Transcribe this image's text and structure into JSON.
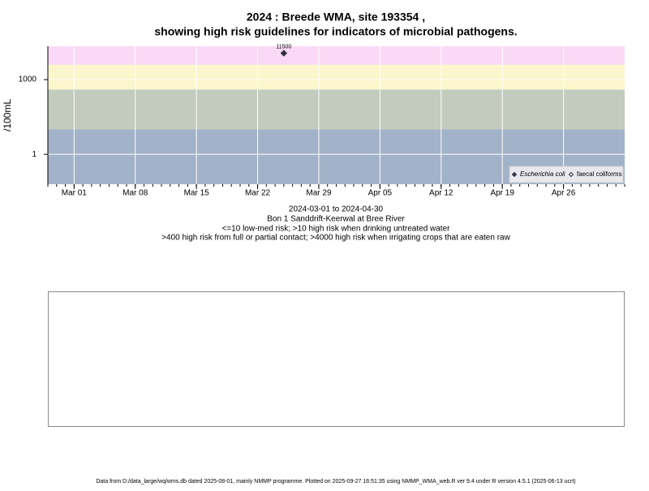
{
  "chart_data": {
    "type": "scatter",
    "title": "2024 : Breede WMA, site 193354 ,",
    "subtitle": "showing high risk guidelines for indicators of microbial pathogens.",
    "y_label": "/100mL",
    "notes": [
      "2024-03-01 to 2024-04-30",
      "Bon 1 Sanddrift-Keerwal at Bree River",
      "<=10 low-med risk; >10 high risk when drinking untreated water",
      ">400 high risk from full or partial contact; >4000 high risk when irrigating crops that are eaten raw"
    ],
    "footer": "Data from D:/data_large/wq/wms.db dated 2025-08-01, mainly NMMP programme. Plotted on 2025-09-27 16:51:35 using NMMP_WMA_web.R ver 9.4 under R version 4.5.1 (2025-06-13 ucrt)",
    "x": [
      "2024-03-25"
    ],
    "series": [
      {
        "name": "Escherichia coli",
        "color": "#333344",
        "marker": "filled-diamond",
        "values": [
          11500
        ],
        "value_labels": [
          "11500"
        ]
      },
      {
        "name": "faecal coliforms",
        "color": "#333344",
        "marker": "open-diamond",
        "values": [
          null
        ]
      }
    ],
    "bands": [
      {
        "to": 10,
        "color": "#a2b2c8"
      },
      {
        "to": 400,
        "color": "#c2cbbd"
      },
      {
        "to": 4000,
        "color": "#fbf6cc"
      },
      {
        "color": "#fad9f6"
      }
    ],
    "xlim": [
      "2024-02-27",
      "2024-05-03"
    ],
    "xticks": [
      {
        "value": "2024-03-01",
        "label": "Mar 01"
      },
      {
        "value": "2024-03-08",
        "label": "Mar 08"
      },
      {
        "value": "2024-03-15",
        "label": "Mar 15"
      },
      {
        "value": "2024-03-22",
        "label": "Mar 22"
      },
      {
        "value": "2024-03-29",
        "label": "Mar 29"
      },
      {
        "value": "2024-04-05",
        "label": "Apr 05"
      },
      {
        "value": "2024-04-12",
        "label": "Apr 12"
      },
      {
        "value": "2024-04-19",
        "label": "Apr 19"
      },
      {
        "value": "2024-04-26",
        "label": "Apr 26"
      }
    ],
    "ylim": [
      0.063,
      21800
    ],
    "yticks": [
      1,
      1000
    ],
    "log_y": true,
    "grid": true,
    "legend": "bottom-right"
  }
}
